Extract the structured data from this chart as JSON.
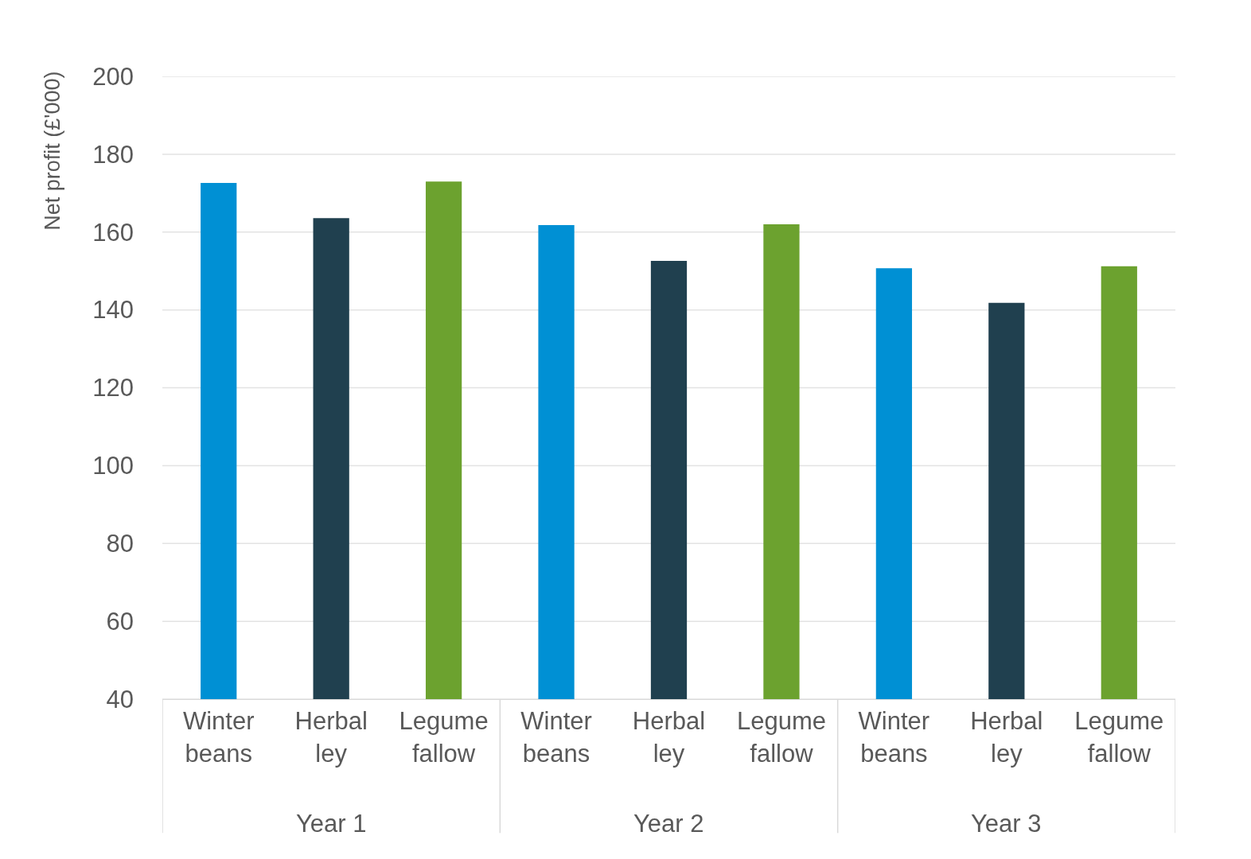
{
  "chart_data": {
    "type": "bar",
    "ylabel": "Net profit (£'000)",
    "categories": [
      "Winter beans",
      "Herbal ley",
      "Legume fallow",
      "Winter beans",
      "Herbal ley",
      "Legume fallow",
      "Winter beans",
      "Herbal ley",
      "Legume fallow"
    ],
    "values": [
      172.6,
      163.6,
      173,
      161.8,
      152.6,
      162,
      150.7,
      141.8,
      151.2
    ],
    "colors": [
      "#0090d4",
      "#20404f",
      "#6ca22f",
      "#0090d4",
      "#20404f",
      "#6ca22f",
      "#0090d4",
      "#20404f",
      "#6ca22f"
    ],
    "annotations": [
      "Year 1",
      "Year 2",
      "Year 3"
    ],
    "ylim": [
      40,
      200
    ],
    "yticks": [
      40,
      60,
      80,
      100,
      120,
      140,
      160,
      180,
      200
    ],
    "grid": "y"
  }
}
